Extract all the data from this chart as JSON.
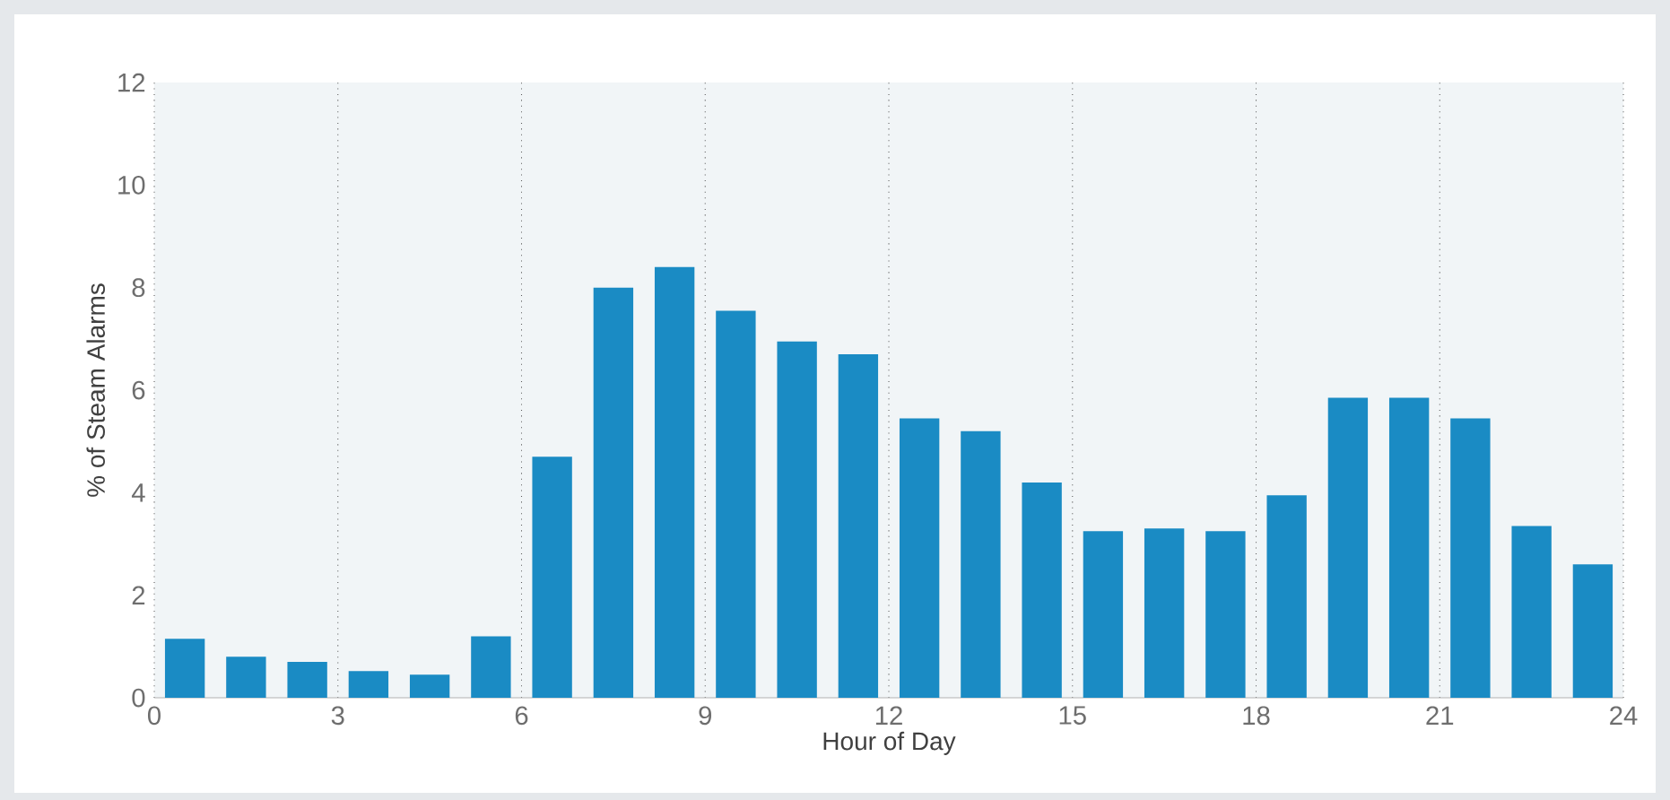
{
  "chart_data": {
    "type": "bar",
    "xlabel": "Hour of Day",
    "ylabel": "% of Steam Alarms",
    "x": [
      0.5,
      1.5,
      2.5,
      3.5,
      4.5,
      5.5,
      6.5,
      7.5,
      8.5,
      9.5,
      10.5,
      11.5,
      12.5,
      13.5,
      14.5,
      15.5,
      16.5,
      17.5,
      18.5,
      19.5,
      20.5,
      21.5,
      22.5,
      23.5
    ],
    "values": [
      1.15,
      0.8,
      0.7,
      0.52,
      0.45,
      1.2,
      4.7,
      8.0,
      8.4,
      7.55,
      6.95,
      6.7,
      5.45,
      5.2,
      4.2,
      3.25,
      3.3,
      3.25,
      3.95,
      5.85,
      5.85,
      5.45,
      3.35,
      2.6
    ],
    "color": "#1a8bc4",
    "xlim": [
      0,
      24
    ],
    "ylim": [
      0,
      12
    ],
    "xticks": [
      0,
      3,
      6,
      9,
      12,
      15,
      18,
      21,
      24
    ],
    "yticks": [
      0,
      2,
      4,
      6,
      8,
      10,
      12
    ],
    "grid": "x"
  }
}
